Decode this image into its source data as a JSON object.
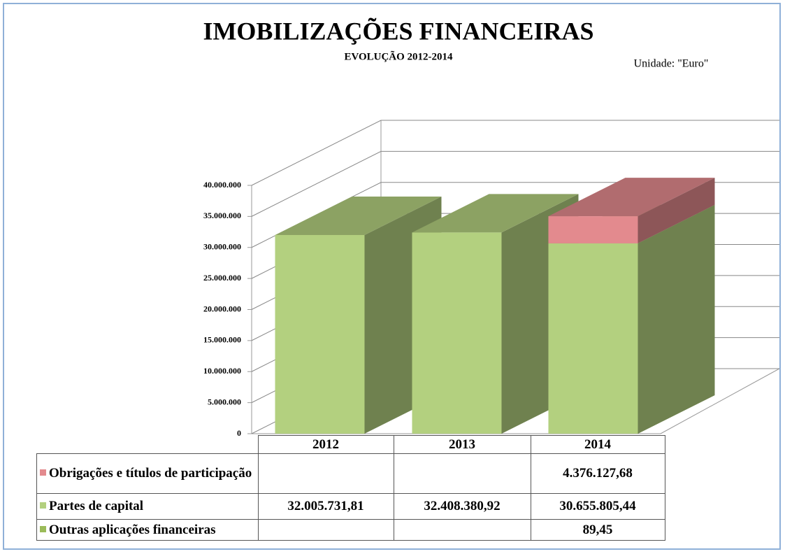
{
  "chart_data": {
    "type": "bar3d_stacked",
    "title": "IMOBILIZAÇÕES FINANCEIRAS",
    "subtitle": "EVOLUÇÃO 2012-2014",
    "unit_note": "Unidade: \"Euro\"",
    "categories": [
      "2012",
      "2013",
      "2014"
    ],
    "ylim": [
      0,
      40000000
    ],
    "yticks": [
      0,
      {
        "value": 5000000,
        "label": "5.000.000"
      },
      {
        "value": 10000000,
        "label": "10.000.000"
      },
      {
        "value": 15000000,
        "label": "15.000.000"
      },
      {
        "value": 20000000,
        "label": "20.000.000"
      },
      {
        "value": 25000000,
        "label": "25.000.000"
      },
      {
        "value": 30000000,
        "label": "30.000.000"
      },
      {
        "value": 35000000,
        "label": "35.000.000"
      },
      {
        "value": 40000000,
        "label": "40.000.000"
      }
    ],
    "grid": true,
    "series": [
      {
        "name": "Obrigações e títulos de participação",
        "color": "#e38a8e",
        "values": [
          null,
          null,
          4376127.68
        ],
        "value_labels": [
          null,
          null,
          "4.376.127,68"
        ]
      },
      {
        "name": "Partes de capital",
        "color": "#b3d07f",
        "values": [
          32005731.81,
          32408380.92,
          30655805.44
        ],
        "value_labels": [
          "32.005.731,81",
          "32.408.380,92",
          "30.655.805,44"
        ]
      },
      {
        "name": "Outras aplicações financeiras",
        "color": "#9bbb59",
        "values": [
          null,
          null,
          89.45
        ],
        "value_labels": [
          null,
          null,
          "89,45"
        ]
      }
    ]
  }
}
